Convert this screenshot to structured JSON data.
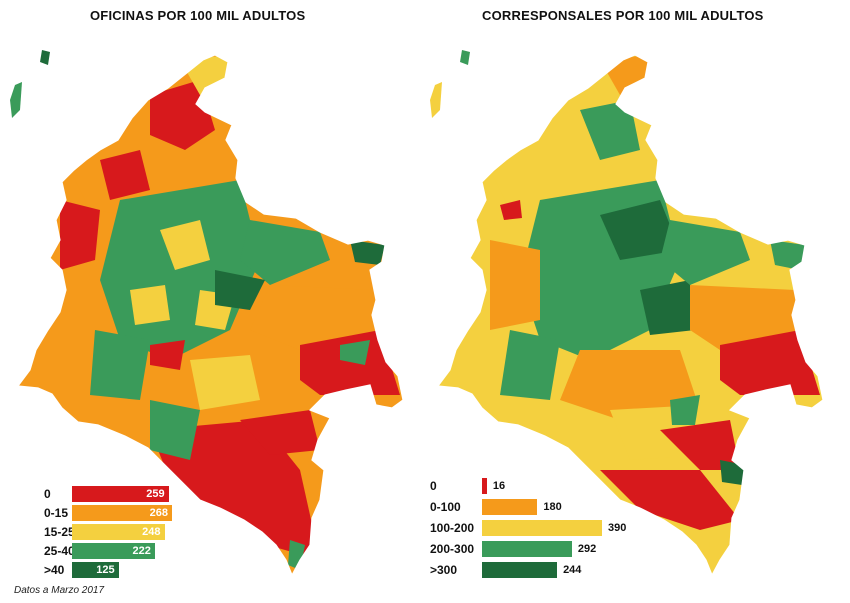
{
  "titles": {
    "left": "OFICINAS POR 100 MIL ADULTOS",
    "right": "CORRESPONSALES POR 100 MIL ADULTOS"
  },
  "colors": {
    "red": "#d7191c",
    "orange": "#f59a1b",
    "yellow": "#f4d03f",
    "green": "#3a9b5a",
    "darkgreen": "#1e6b3a"
  },
  "legend_left": [
    {
      "label": "0",
      "value": "259",
      "color": "red"
    },
    {
      "label": "0-15",
      "value": "268",
      "color": "orange"
    },
    {
      "label": "15-25",
      "value": "248",
      "color": "yellow"
    },
    {
      "label": "25-40",
      "value": "222",
      "color": "green"
    },
    {
      "label": ">40",
      "value": "125",
      "color": "darkgreen"
    }
  ],
  "legend_right": [
    {
      "label": "0",
      "value": "16",
      "color": "red"
    },
    {
      "label": "0-100",
      "value": "180",
      "color": "orange"
    },
    {
      "label": "100-200",
      "value": "390",
      "color": "yellow"
    },
    {
      "label": "200-300",
      "value": "292",
      "color": "green"
    },
    {
      "label": ">300",
      "value": "244",
      "color": "darkgreen"
    }
  ],
  "footnote": "Datos a Marzo 2017"
}
